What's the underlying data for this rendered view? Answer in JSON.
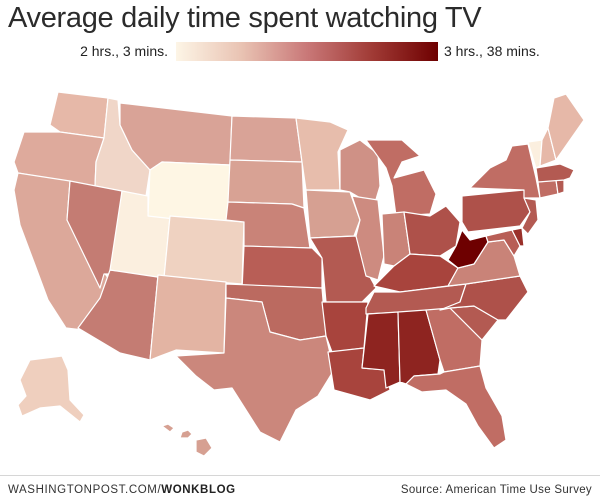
{
  "title": "Average daily time spent watching TV",
  "legend": {
    "low_label": "2 hrs., 3 mins.",
    "high_label": "3 hrs., 38 mins.",
    "low_color": "#fdf5e6",
    "high_color": "#6e0000"
  },
  "footer": {
    "publisher": "WASHINGTONPOST.COM/",
    "section": "WONKBLOG",
    "source": "Source: American Time Use Survey"
  },
  "states": [
    {
      "code": "WA",
      "color": "#e6b8a8"
    },
    {
      "code": "OR",
      "color": "#deaa9c"
    },
    {
      "code": "CA",
      "color": "#dca89a"
    },
    {
      "code": "ID",
      "color": "#f0d6c8"
    },
    {
      "code": "NV",
      "color": "#c47c73"
    },
    {
      "code": "AZ",
      "color": "#c47c73"
    },
    {
      "code": "UT",
      "color": "#fbefdf"
    },
    {
      "code": "MT",
      "color": "#d9a397"
    },
    {
      "code": "WY",
      "color": "#fef6e4"
    },
    {
      "code": "CO",
      "color": "#efd2c1"
    },
    {
      "code": "NM",
      "color": "#e3b4a3"
    },
    {
      "code": "ND",
      "color": "#d9a397"
    },
    {
      "code": "SD",
      "color": "#d8a294"
    },
    {
      "code": "NE",
      "color": "#c98378"
    },
    {
      "code": "KS",
      "color": "#b85e56"
    },
    {
      "code": "OK",
      "color": "#bb6a60"
    },
    {
      "code": "TX",
      "color": "#cb877c"
    },
    {
      "code": "MN",
      "color": "#e7bdac"
    },
    {
      "code": "IA",
      "color": "#d6a092"
    },
    {
      "code": "MO",
      "color": "#b35a52"
    },
    {
      "code": "AR",
      "color": "#a8443d"
    },
    {
      "code": "LA",
      "color": "#a8443d"
    },
    {
      "code": "WI",
      "color": "#cf9186"
    },
    {
      "code": "IL",
      "color": "#cd8b80"
    },
    {
      "code": "MI",
      "color": "#c06d64"
    },
    {
      "code": "IN",
      "color": "#c98378"
    },
    {
      "code": "OH",
      "color": "#ae514a"
    },
    {
      "code": "KY",
      "color": "#a8443d"
    },
    {
      "code": "TN",
      "color": "#b35a52"
    },
    {
      "code": "MS",
      "color": "#8e2420"
    },
    {
      "code": "AL",
      "color": "#8e2420"
    },
    {
      "code": "GA",
      "color": "#c06d64"
    },
    {
      "code": "FL",
      "color": "#c06d64"
    },
    {
      "code": "SC",
      "color": "#b35a52"
    },
    {
      "code": "NC",
      "color": "#ae514a"
    },
    {
      "code": "VA",
      "color": "#c98378"
    },
    {
      "code": "WV",
      "color": "#6e0000"
    },
    {
      "code": "MD",
      "color": "#b85e56"
    },
    {
      "code": "DE",
      "color": "#9a302a"
    },
    {
      "code": "PA",
      "color": "#ae514a"
    },
    {
      "code": "NJ",
      "color": "#b35a52"
    },
    {
      "code": "NY",
      "color": "#c06d64"
    },
    {
      "code": "CT",
      "color": "#c06d64"
    },
    {
      "code": "RI",
      "color": "#b35a52"
    },
    {
      "code": "MA",
      "color": "#b35a52"
    },
    {
      "code": "VT",
      "color": "#fbefdf"
    },
    {
      "code": "NH",
      "color": "#e6b8a8"
    },
    {
      "code": "ME",
      "color": "#e6b8a8"
    },
    {
      "code": "AK",
      "color": "#efcfbe"
    },
    {
      "code": "HI",
      "color": "#d6a092"
    }
  ]
}
